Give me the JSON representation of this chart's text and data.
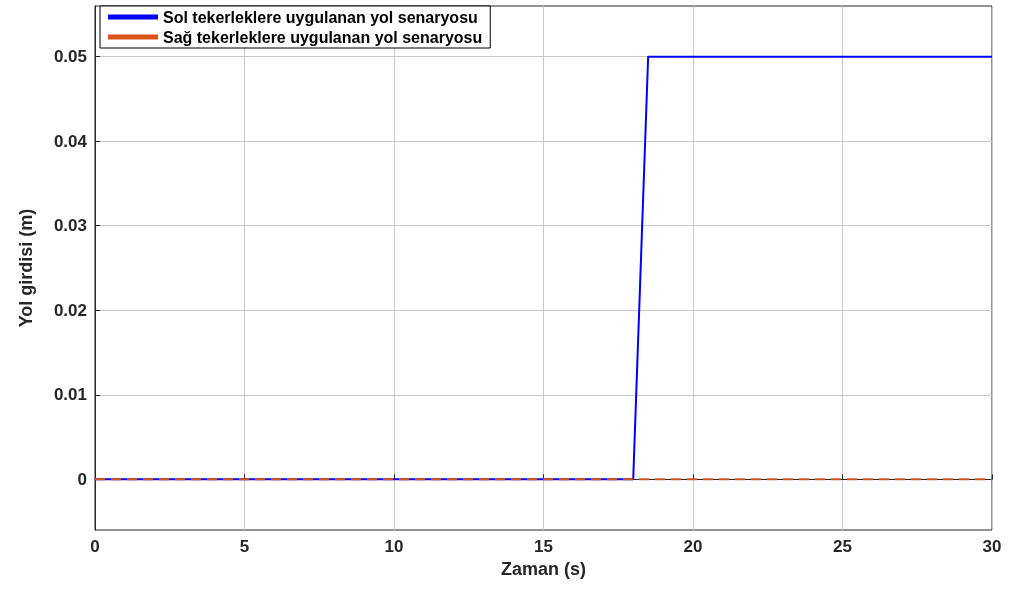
{
  "chart_data": {
    "type": "line",
    "xlabel": "Zaman (s)",
    "ylabel": "Yol girdisi (m)",
    "xlim": [
      0,
      30
    ],
    "xticks": [
      0,
      5,
      10,
      15,
      20,
      25,
      30
    ],
    "ylim": [
      -0.006,
      0.056
    ],
    "yticks": [
      0,
      0.01,
      0.02,
      0.03,
      0.04,
      0.05
    ],
    "grid": true,
    "legend": "top left",
    "marker": "none",
    "series": [
      {
        "name": "Sol tekerleklere uygulanan yol senaryosu",
        "color": "#0000ff",
        "line_style": "solid",
        "x": [
          0,
          18,
          18.5,
          30
        ],
        "values": [
          0,
          0,
          0.05,
          0.05
        ]
      },
      {
        "name": "Sağ tekerleklere uygulanan yol senaryosu",
        "color": "#d95319",
        "line_style": "dashed",
        "x": [
          0,
          30
        ],
        "values": [
          0,
          0
        ]
      }
    ]
  }
}
